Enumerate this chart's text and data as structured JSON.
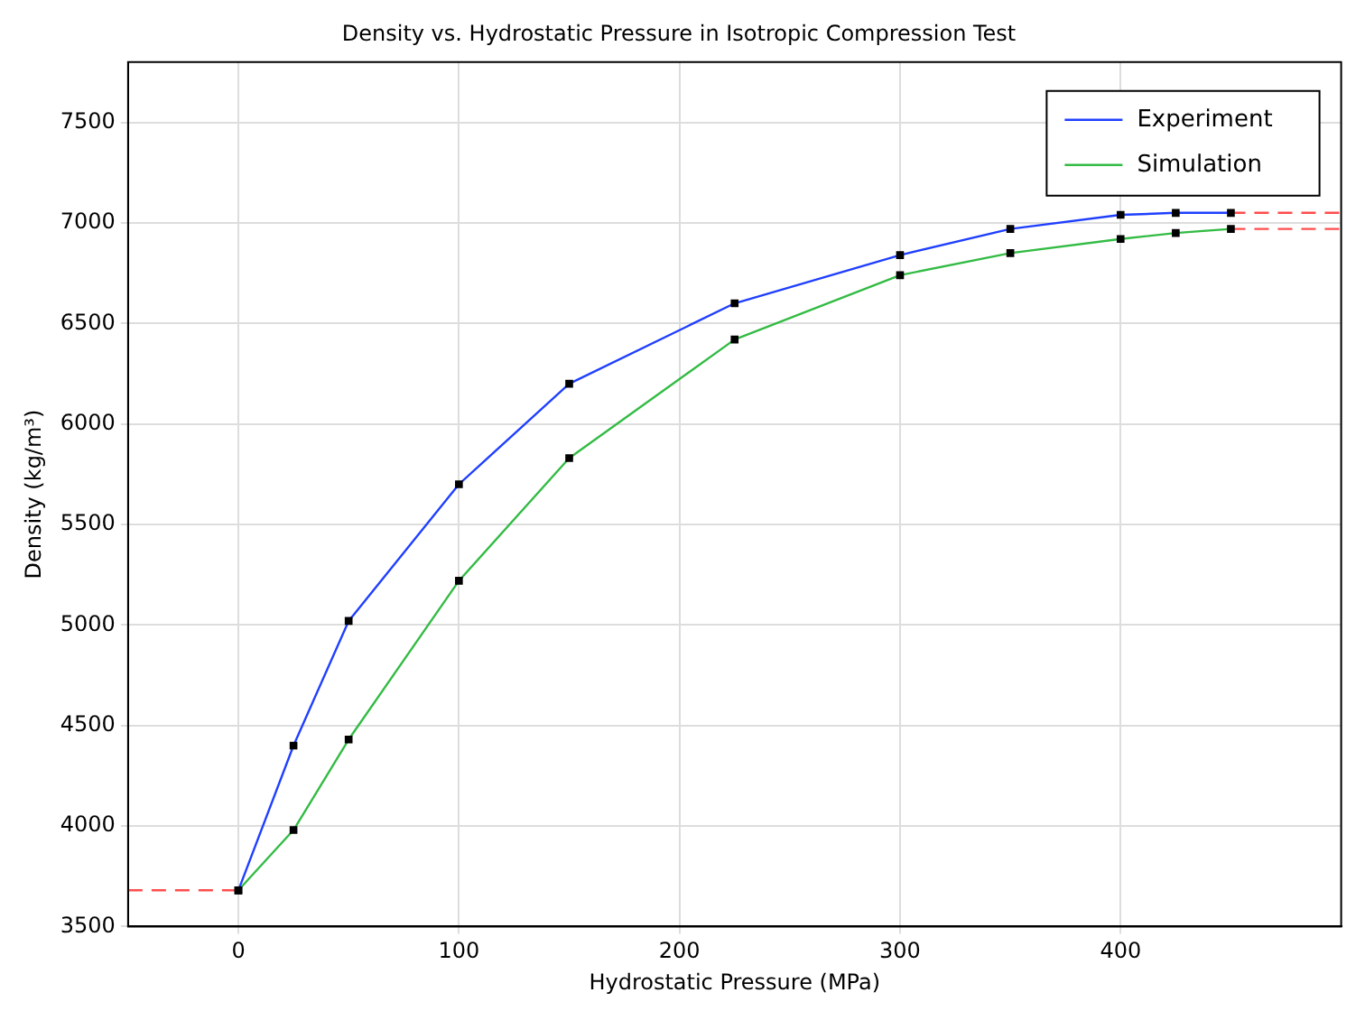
{
  "chart_data": {
    "type": "line",
    "title": "Density vs. Hydrostatic Pressure in Isotropic Compression Test",
    "xlabel": "Hydrostatic Pressure (MPa)",
    "ylabel": "Density (kg/m³)",
    "xlim": [
      -50,
      500
    ],
    "xticks": [
      0,
      100,
      200,
      300,
      400
    ],
    "ylim": [
      3500,
      7800
    ],
    "yticks": [
      3500,
      4000,
      4500,
      5000,
      5500,
      6000,
      6500,
      7000,
      7500
    ],
    "grid": true,
    "legend": "top right",
    "marker": "square",
    "series": [
      {
        "name": "Experiment",
        "color": "#1f3fff",
        "x": [
          0,
          25,
          50,
          100,
          150,
          225,
          300,
          350,
          400,
          425,
          450
        ],
        "values": [
          3680,
          4400,
          5020,
          5700,
          6200,
          6600,
          6840,
          6970,
          7040,
          7050,
          7050
        ]
      },
      {
        "name": "Simulation",
        "color": "#33bb44",
        "x": [
          0,
          25,
          50,
          100,
          150,
          225,
          300,
          350,
          400,
          425,
          450
        ],
        "values": [
          3680,
          3980,
          4430,
          5220,
          5830,
          6420,
          6740,
          6850,
          6920,
          6950,
          6970
        ]
      },
      {
        "color": "#ff4d4d",
        "line_style": "dashed",
        "marker": "none",
        "x": [
          -50,
          0
        ],
        "values": [
          3680,
          3680
        ]
      },
      {
        "color": "#ff4d4d",
        "line_style": "dashed",
        "marker": "none",
        "x": [
          450,
          500
        ],
        "values": [
          7050,
          7050
        ]
      },
      {
        "color": "#ff4d4d",
        "line_style": "dashed",
        "marker": "none",
        "x": [
          450,
          500
        ],
        "values": [
          6970,
          6970
        ]
      }
    ]
  }
}
